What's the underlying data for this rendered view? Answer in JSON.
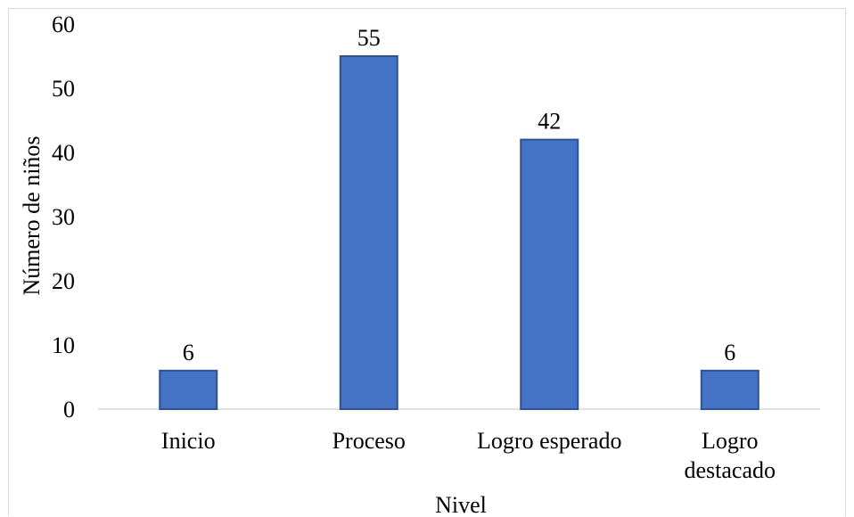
{
  "chart_data": {
    "type": "bar",
    "categories": [
      "Inicio",
      "Proceso",
      "Logro esperado",
      "Logro destacado"
    ],
    "category_lines": [
      [
        "Inicio"
      ],
      [
        "Proceso"
      ],
      [
        "Logro esperado"
      ],
      [
        "Logro",
        "destacado"
      ]
    ],
    "values": [
      6,
      55,
      42,
      6
    ],
    "data_labels": [
      "6",
      "55",
      "42",
      "6"
    ],
    "title": "",
    "xlabel": "Nivel",
    "ylabel": "Número de niños",
    "ylim": [
      0,
      60
    ],
    "yticks": [
      "0",
      "10",
      "20",
      "30",
      "40",
      "50",
      "60"
    ],
    "grid": false,
    "legend": "none",
    "colors": {
      "bar_fill": "#4472C4",
      "bar_stroke": "#2F528F",
      "axis_line": "#d9d9d9"
    }
  }
}
